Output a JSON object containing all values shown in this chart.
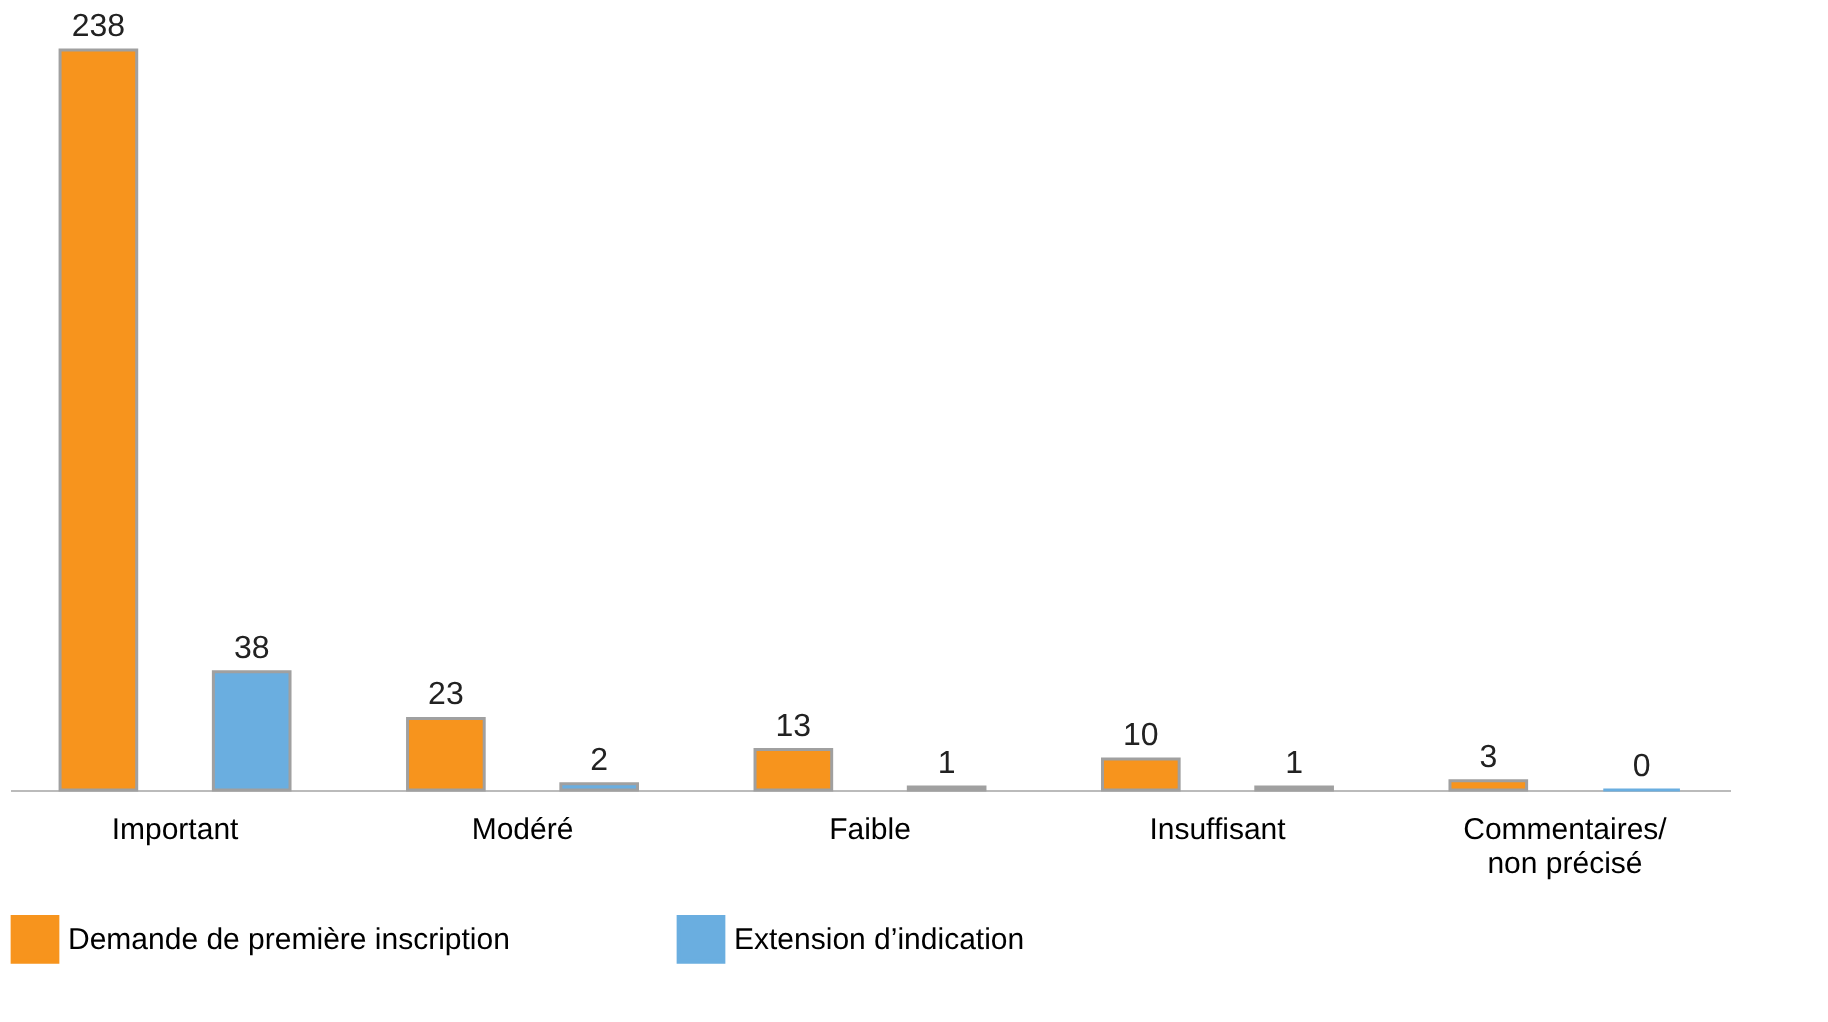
{
  "chart_data": {
    "type": "bar",
    "categories": [
      "Important",
      "Modéré",
      "Faible",
      "Insuffisant",
      "Commentaires/\nnon précisé"
    ],
    "series": [
      {
        "name": "Demande de première inscription",
        "color": "#f7941d",
        "values": [
          238,
          23,
          13,
          10,
          3
        ]
      },
      {
        "name": "Extension d’indication",
        "color": "#6aaee0",
        "values": [
          38,
          2,
          1,
          1,
          0
        ]
      }
    ],
    "data_labels": true,
    "legend": "bottom left",
    "grid": false
  }
}
